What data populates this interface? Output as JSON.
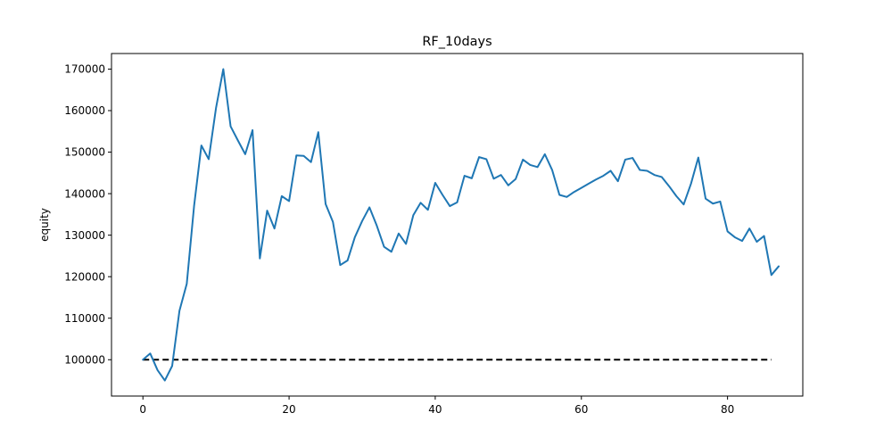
{
  "chart_data": {
    "type": "line",
    "title": "RF_10days",
    "xlabel": "",
    "ylabel": "equity",
    "xlim": [
      -4.3,
      90.3
    ],
    "ylim": [
      91250,
      173750
    ],
    "grid": false,
    "x_ticks": [
      0,
      20,
      40,
      60,
      80
    ],
    "y_ticks": [
      100000,
      110000,
      120000,
      130000,
      140000,
      150000,
      160000,
      170000
    ],
    "colors": {
      "equity": "#1f77b4",
      "baseline": "#000000"
    },
    "series": [
      {
        "values": [
          100000,
          101500,
          97500,
          95000,
          98500,
          111800,
          118300,
          137000,
          151600,
          148300,
          160600,
          170000,
          156200,
          152800,
          149500,
          155300,
          124400,
          135900,
          131600,
          139400,
          138200,
          149200,
          149100,
          147600,
          154800,
          137500,
          133200,
          122800,
          123900,
          129500,
          133400,
          136700,
          132300,
          127200,
          126000,
          130400,
          127900,
          134800,
          137800,
          136100,
          142600,
          139700,
          137000,
          137900,
          144300,
          143700,
          148800,
          148300,
          143600,
          144500,
          142000,
          143500,
          148200,
          146900,
          146400,
          149500,
          145700,
          139700,
          139200,
          140400,
          141400,
          142400,
          143400,
          144300,
          145500,
          143000,
          148200,
          148600,
          145700,
          145500,
          144500,
          144000,
          141800,
          139400,
          137400,
          142400,
          148700,
          138800,
          137600,
          138100,
          130900,
          129500,
          128600,
          131600,
          128400,
          129800,
          120400,
          122500
        ]
      }
    ],
    "baseline": {
      "x": [
        0,
        86
      ],
      "y": 100000,
      "style": "dashed"
    }
  }
}
